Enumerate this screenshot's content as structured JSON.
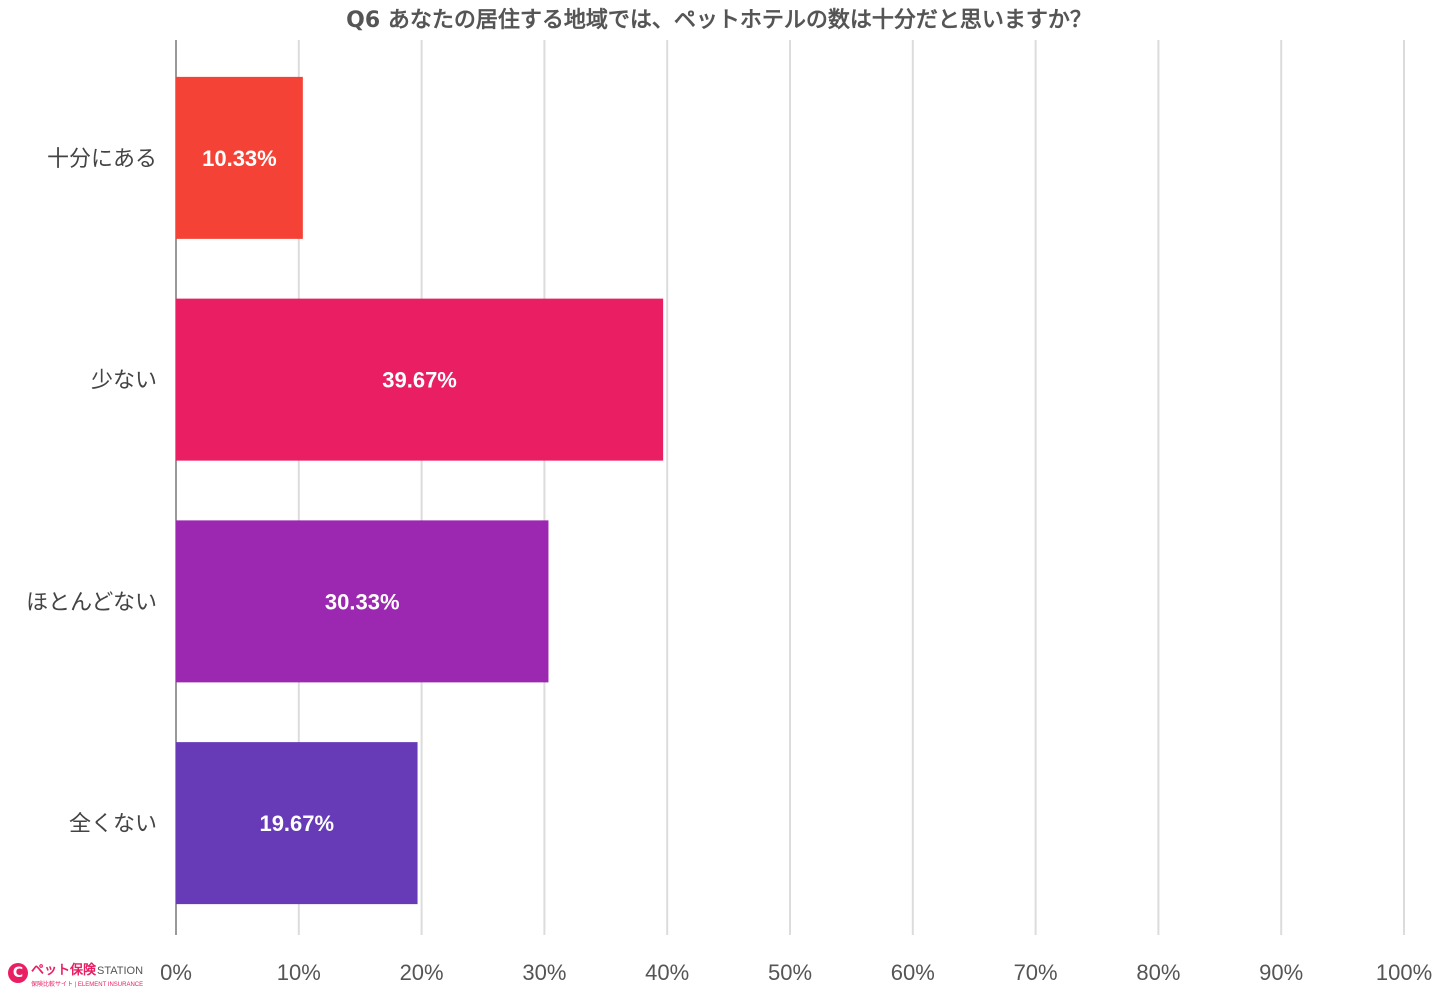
{
  "chart_data": {
    "type": "bar",
    "orientation": "horizontal",
    "title": "Q6 あなたの居住する地域では、ペットホテルの数は十分だと思いますか？",
    "categories": [
      "十分にある",
      "少ない",
      "ほとんどない",
      "全くない"
    ],
    "values": [
      10.33,
      39.67,
      30.33,
      19.67
    ],
    "data_labels": [
      "10.33%",
      "39.67%",
      "30.33%",
      "19.67%"
    ],
    "colors": [
      "#f44336",
      "#e91e63",
      "#9c27b0",
      "#673ab7"
    ],
    "xlim": [
      0,
      100
    ],
    "x_ticks": [
      "0%",
      "10%",
      "20%",
      "30%",
      "40%",
      "50%",
      "60%",
      "70%",
      "80%",
      "90%",
      "100%"
    ],
    "grid": true
  },
  "logo": {
    "mark": "C",
    "brand_jp": "ペット保険",
    "brand_en": "STATION",
    "sub": "保険比較サイト | ELEMENT INSURANCE"
  }
}
